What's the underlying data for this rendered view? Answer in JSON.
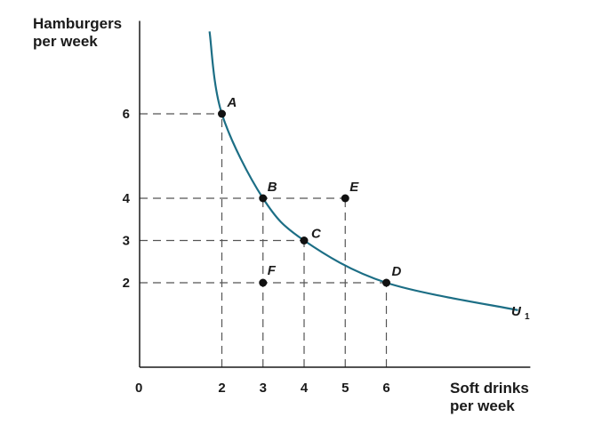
{
  "chart_data": {
    "type": "line",
    "xlabel_lines": [
      "Soft drinks",
      "per week"
    ],
    "ylabel_lines": [
      "Hamburgers",
      "per week"
    ],
    "origin_label": "0",
    "x_ticks": [
      2,
      3,
      4,
      5,
      6
    ],
    "y_ticks": [
      2,
      3,
      4,
      6
    ],
    "xlim": [
      0,
      9.5
    ],
    "ylim": [
      0,
      8.2
    ],
    "grid": false,
    "curve": {
      "label": "U",
      "subscript": "1",
      "color": "#1c6e85",
      "points": [
        {
          "x": 1.7,
          "y": 7.95
        },
        {
          "x": 2,
          "y": 6
        },
        {
          "x": 3,
          "y": 4
        },
        {
          "x": 4,
          "y": 3
        },
        {
          "x": 6,
          "y": 2
        },
        {
          "x": 9.2,
          "y": 1.35
        }
      ]
    },
    "points": [
      {
        "label": "A",
        "x": 2,
        "y": 6
      },
      {
        "label": "B",
        "x": 3,
        "y": 4
      },
      {
        "label": "C",
        "x": 4,
        "y": 3
      },
      {
        "label": "D",
        "x": 6,
        "y": 2
      },
      {
        "label": "E",
        "x": 5,
        "y": 4
      },
      {
        "label": "F",
        "x": 3,
        "y": 2
      }
    ],
    "dashed_guides": [
      {
        "from": {
          "x": 0,
          "y": 6
        },
        "to": {
          "x": 2,
          "y": 6
        }
      },
      {
        "from": {
          "x": 0,
          "y": 4
        },
        "to": {
          "x": 5,
          "y": 4
        }
      },
      {
        "from": {
          "x": 0,
          "y": 3
        },
        "to": {
          "x": 4,
          "y": 3
        }
      },
      {
        "from": {
          "x": 0,
          "y": 2
        },
        "to": {
          "x": 6,
          "y": 2
        }
      },
      {
        "from": {
          "x": 2,
          "y": 0
        },
        "to": {
          "x": 2,
          "y": 6
        }
      },
      {
        "from": {
          "x": 3,
          "y": 0
        },
        "to": {
          "x": 3,
          "y": 4
        }
      },
      {
        "from": {
          "x": 4,
          "y": 0
        },
        "to": {
          "x": 4,
          "y": 3
        }
      },
      {
        "from": {
          "x": 5,
          "y": 0
        },
        "to": {
          "x": 5,
          "y": 4
        }
      },
      {
        "from": {
          "x": 6,
          "y": 0
        },
        "to": {
          "x": 6,
          "y": 2
        }
      }
    ],
    "colors": {
      "curve": "#1c6e85",
      "axes": "#1a1a1a",
      "guides": "#555555",
      "points": "#111111"
    }
  }
}
